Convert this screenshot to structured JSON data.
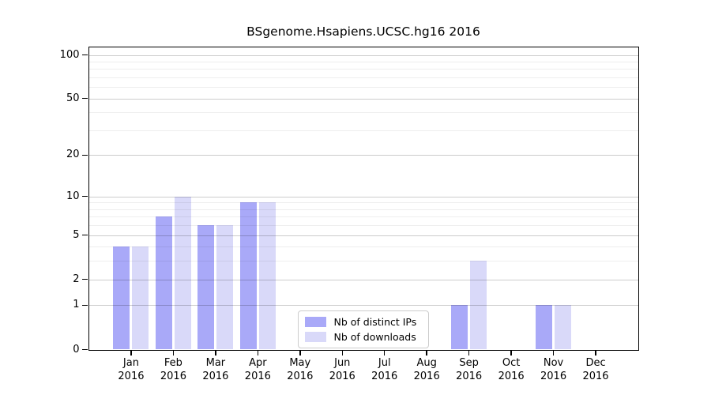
{
  "chart_data": {
    "type": "bar",
    "title": "BSgenome.Hsapiens.UCSC.hg16 2016",
    "year_label": "2016",
    "months": [
      "Jan",
      "Feb",
      "Mar",
      "Apr",
      "May",
      "Jun",
      "Jul",
      "Aug",
      "Sep",
      "Oct",
      "Nov",
      "Dec"
    ],
    "series": [
      {
        "name": "Nb of distinct IPs",
        "color": "#a9a9f8",
        "values": [
          4,
          7,
          6,
          9,
          0,
          0,
          0,
          0,
          1,
          0,
          1,
          0
        ]
      },
      {
        "name": "Nb of downloads",
        "color": "#d9d9f9",
        "values": [
          4,
          10,
          6,
          9,
          0,
          0,
          0,
          0,
          3,
          0,
          1,
          0
        ]
      }
    ],
    "y_axis": {
      "scale": "log1p",
      "max": 100,
      "ticks": [
        0,
        1,
        2,
        5,
        10,
        20,
        50,
        100
      ],
      "minor_gridlines": [
        3,
        4,
        6,
        7,
        8,
        9,
        30,
        40,
        60,
        70,
        80,
        90
      ]
    },
    "grid": true,
    "legend_position": "inside-bottom-center",
    "colors": {
      "axis": "#000000",
      "major_grid": "#cccccc",
      "minor_grid": "#efefef",
      "legend_border": "#cccccc"
    }
  }
}
